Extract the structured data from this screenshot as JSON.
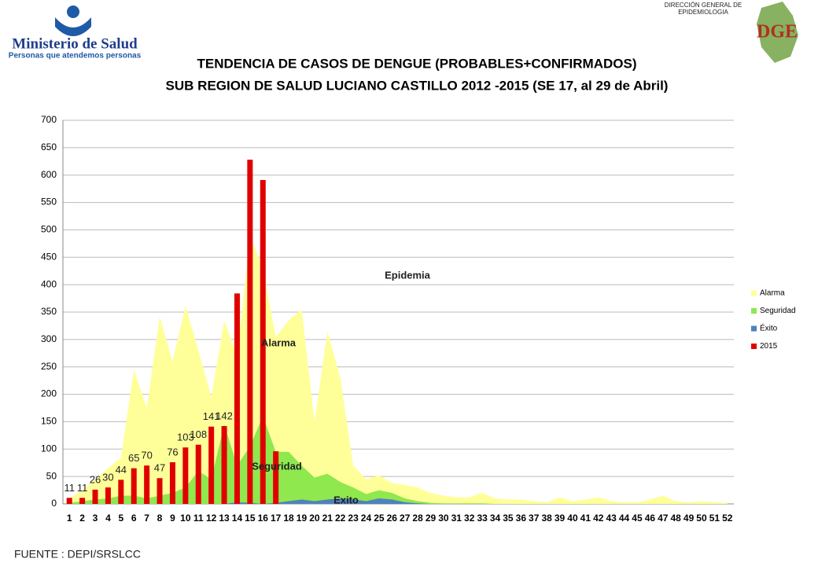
{
  "header": {
    "ministry": "Ministerio de Salud",
    "slogan": "Personas que atendemos personas",
    "agency_line1": "DIRECCIÓN GENERAL DE",
    "agency_line2": "EPIDEMIOLOGIA",
    "agency_logo": "DGE"
  },
  "footer": "FUENTE : DEPI/SRSLCC",
  "chart_data": {
    "type": "combo",
    "title": "TENDENCIA DE CASOS DE DENGUE (PROBABLES+CONFIRMADOS)",
    "subtitle": "SUB REGION DE SALUD LUCIANO CASTILLO 2012 -2015 (SE 17, al 29 de Abril)",
    "annotations": [
      "Epidemia",
      "Alarma",
      "Seguridad",
      "Exito"
    ],
    "categories": [
      1,
      2,
      3,
      4,
      5,
      6,
      7,
      8,
      9,
      10,
      11,
      12,
      13,
      14,
      15,
      16,
      17,
      18,
      19,
      20,
      21,
      22,
      23,
      24,
      25,
      26,
      27,
      28,
      29,
      30,
      31,
      32,
      33,
      34,
      35,
      36,
      37,
      38,
      39,
      40,
      41,
      42,
      43,
      44,
      45,
      46,
      47,
      48,
      49,
      50,
      51,
      52
    ],
    "ylim": [
      0,
      700
    ],
    "yticks": [
      0,
      50,
      100,
      150,
      200,
      250,
      300,
      350,
      400,
      450,
      500,
      550,
      600,
      650,
      700
    ],
    "grid": true,
    "legend": "right",
    "series": [
      {
        "name": "Alarma",
        "type": "area",
        "color": "#ffff99",
        "values": [
          10,
          25,
          45,
          65,
          85,
          245,
          175,
          342,
          260,
          362,
          280,
          195,
          335,
          270,
          490,
          430,
          305,
          335,
          355,
          150,
          315,
          230,
          70,
          45,
          52,
          38,
          35,
          30,
          20,
          15,
          12,
          12,
          20,
          10,
          8,
          8,
          5,
          3,
          12,
          5,
          8,
          12,
          5,
          3,
          3,
          8,
          15,
          5,
          3,
          5,
          3,
          2
        ]
      },
      {
        "name": "Seguridad",
        "type": "area",
        "color": "#8ee84e",
        "values": [
          2,
          5,
          8,
          10,
          15,
          15,
          10,
          15,
          20,
          30,
          60,
          45,
          145,
          70,
          105,
          160,
          95,
          95,
          70,
          48,
          55,
          40,
          30,
          18,
          25,
          20,
          10,
          5,
          2,
          1,
          1,
          1,
          1,
          0,
          0,
          0,
          0,
          0,
          0,
          0,
          0,
          0,
          0,
          0,
          0,
          0,
          0,
          0,
          0,
          0,
          0,
          0
        ]
      },
      {
        "name": "Éxito",
        "type": "area",
        "color": "#4f81bd",
        "values": [
          0,
          0,
          0,
          0,
          0,
          0,
          0,
          0,
          0,
          0,
          0,
          0,
          0,
          3,
          2,
          0,
          2,
          5,
          8,
          5,
          8,
          10,
          8,
          5,
          10,
          8,
          3,
          1,
          0,
          0,
          0,
          0,
          0,
          0,
          0,
          0,
          0,
          0,
          0,
          0,
          0,
          0,
          0,
          0,
          0,
          0,
          0,
          0,
          0,
          0,
          0,
          0
        ]
      },
      {
        "name": "2015",
        "type": "bar",
        "color": "#e00000",
        "values": [
          11,
          11,
          26,
          30,
          44,
          65,
          70,
          47,
          76,
          103,
          108,
          141,
          142,
          384,
          628,
          591,
          96,
          null,
          null,
          null,
          null,
          null,
          null,
          null,
          null,
          null,
          null,
          null,
          null,
          null,
          null,
          null,
          null,
          null,
          null,
          null,
          null,
          null,
          null,
          null,
          null,
          null,
          null,
          null,
          null,
          null,
          null,
          null,
          null,
          null,
          null,
          null
        ],
        "value_labels": [
          "11",
          "11",
          "26",
          "30",
          "44",
          "65",
          "70",
          "47",
          "76",
          "103",
          "108",
          "141",
          "142",
          null,
          null,
          null,
          null,
          null,
          null,
          null,
          null,
          null,
          null,
          null,
          null,
          null,
          null,
          null,
          null,
          null,
          null,
          null,
          null,
          null,
          null,
          null,
          null,
          null,
          null,
          null,
          null,
          null,
          null,
          null,
          null,
          null,
          null,
          null,
          null,
          null,
          null,
          null
        ]
      }
    ]
  }
}
